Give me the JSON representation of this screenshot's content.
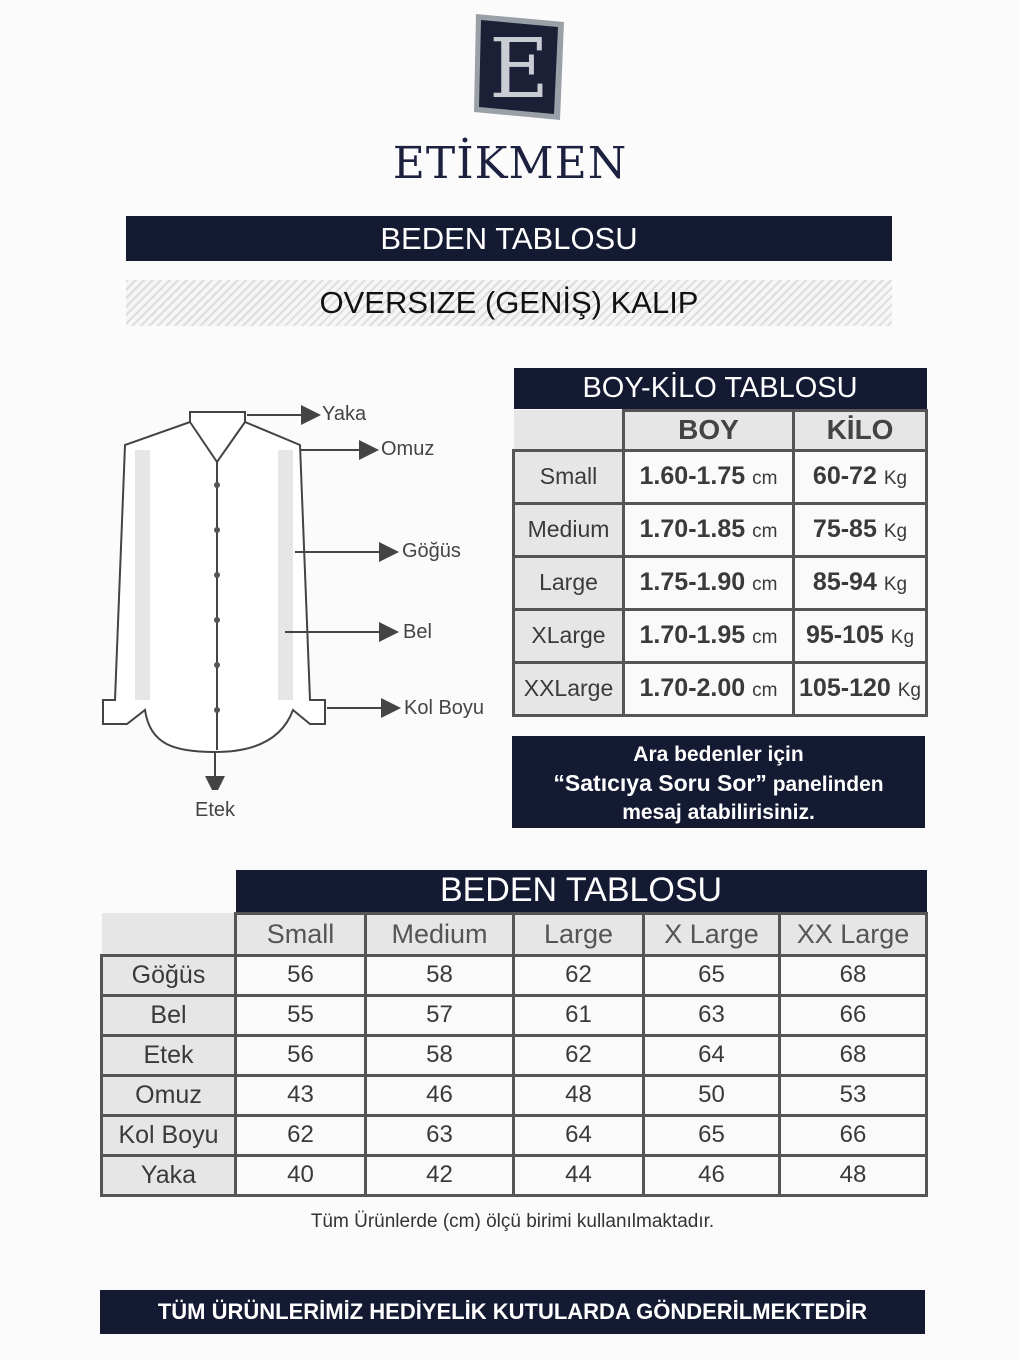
{
  "brand": {
    "logo_letter": "E",
    "name": "ETİKMEN"
  },
  "title": "BEDEN TABLOSU",
  "subtitle": "OVERSIZE (GENİŞ) KALIP",
  "diagram_labels": {
    "yaka": "Yaka",
    "omuz": "Omuz",
    "gogus": "Göğüs",
    "bel": "Bel",
    "kol_boyu": "Kol Boyu",
    "etek": "Etek"
  },
  "boy_kilo": {
    "title": "BOY-KİLO TABLOSU",
    "headers": [
      "BOY",
      "KİLO"
    ],
    "rows": [
      {
        "size": "Small",
        "boy": "1.60-1.75",
        "boy_unit": "cm",
        "kilo": "60-72",
        "kilo_unit": "Kg"
      },
      {
        "size": "Medium",
        "boy": "1.70-1.85",
        "boy_unit": "cm",
        "kilo": "75-85",
        "kilo_unit": "Kg"
      },
      {
        "size": "Large",
        "boy": "1.75-1.90",
        "boy_unit": "cm",
        "kilo": "85-94",
        "kilo_unit": "Kg"
      },
      {
        "size": "XLarge",
        "boy": "1.70-1.95",
        "boy_unit": "cm",
        "kilo": "95-105",
        "kilo_unit": "Kg"
      },
      {
        "size": "XXLarge",
        "boy": "1.70-2.00",
        "boy_unit": "cm",
        "kilo": "105-120",
        "kilo_unit": "Kg"
      }
    ]
  },
  "note": {
    "line1": "Ara bedenler için",
    "line2_bold": "“Satıcıya Soru Sor”",
    "line2_rest": " panelinden",
    "line3": "mesaj atabilirisiniz."
  },
  "beden": {
    "title": "BEDEN TABLOSU",
    "headers": [
      "Small",
      "Medium",
      "Large",
      "X Large",
      "XX Large"
    ],
    "rows": [
      {
        "label": "Göğüs",
        "values": [
          "56",
          "58",
          "62",
          "65",
          "68"
        ]
      },
      {
        "label": "Bel",
        "values": [
          "55",
          "57",
          "61",
          "63",
          "66"
        ]
      },
      {
        "label": "Etek",
        "values": [
          "56",
          "58",
          "62",
          "64",
          "68"
        ]
      },
      {
        "label": "Omuz",
        "values": [
          "43",
          "46",
          "48",
          "50",
          "53"
        ]
      },
      {
        "label": "Kol Boyu",
        "values": [
          "62",
          "63",
          "64",
          "65",
          "66"
        ]
      },
      {
        "label": "Yaka",
        "values": [
          "40",
          "42",
          "44",
          "46",
          "48"
        ]
      }
    ]
  },
  "footnote": "Tüm Ürünlerde (cm) ölçü birimi kullanılmaktadır.",
  "banner": "TÜM ÜRÜNLERİMİZ HEDİYELİK KUTULARDA GÖNDERİLMEKTEDİR"
}
